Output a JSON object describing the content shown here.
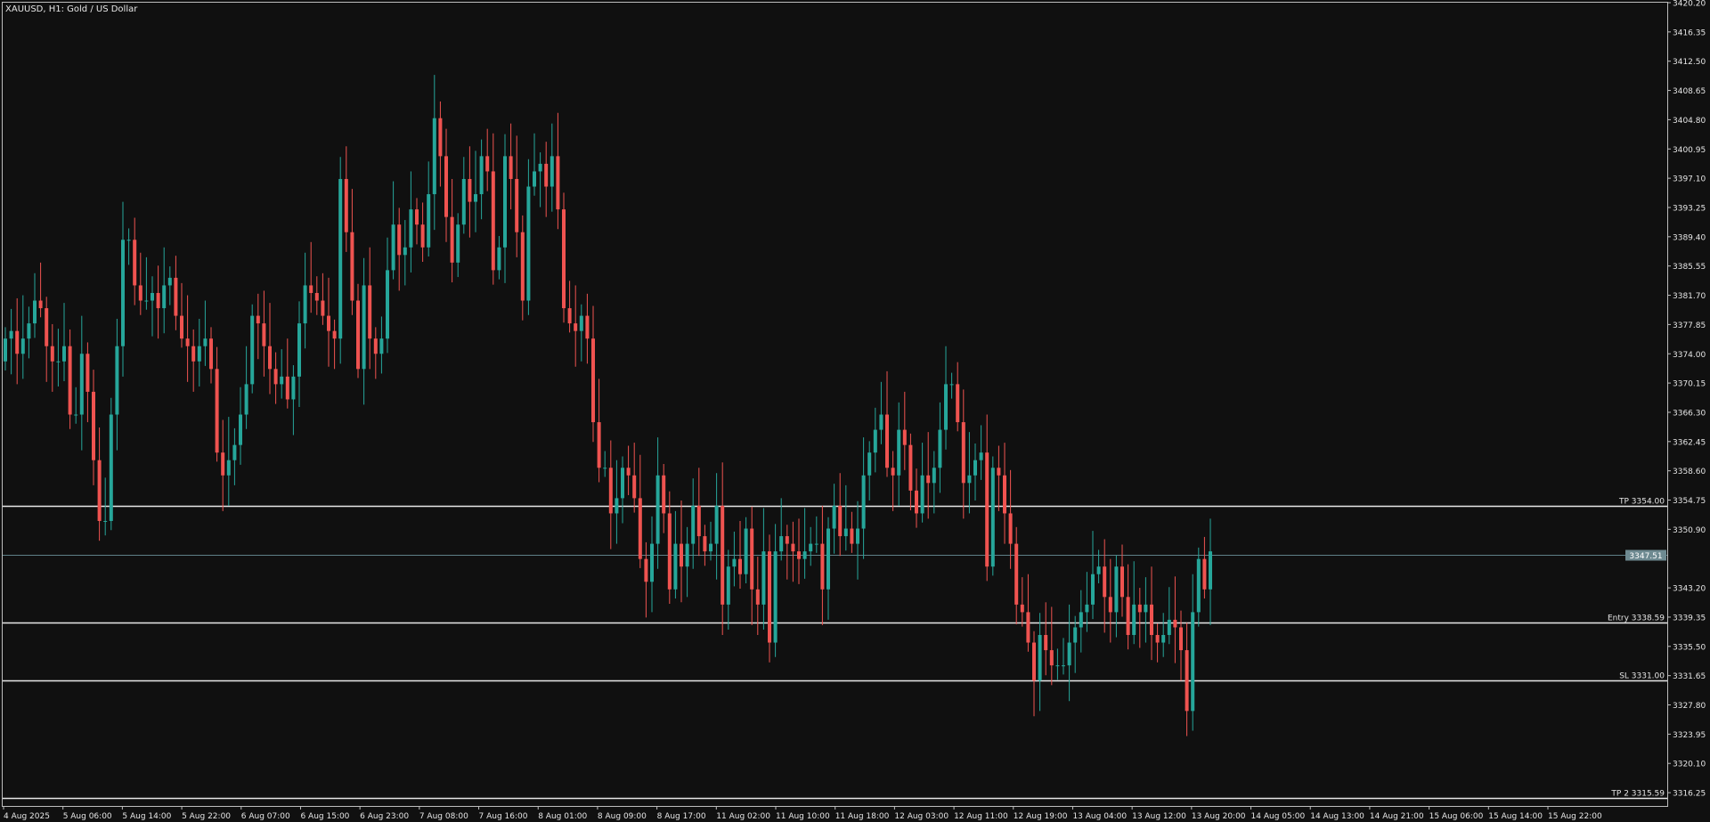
{
  "header": {
    "symbol_line": "XAUUSD, H1:  Gold / US Dollar"
  },
  "colors": {
    "background": "#101010",
    "frame": "#bdbdbd",
    "bull": "#26a69a",
    "bear": "#ef5350",
    "level_line": "#e8e8e8",
    "current_price_line": "#5f7f87",
    "current_price_tag_bg": "#6e8a91",
    "text": "#e6e6e6"
  },
  "chart_data": {
    "type": "candlestick",
    "symbol": "XAUUSD",
    "timeframe": "H1",
    "ylim": [
      3314.5,
      3420.2
    ],
    "grid": false,
    "y_ticks": [
      "3420.20",
      "3416.35",
      "3412.50",
      "3408.65",
      "3404.80",
      "3400.95",
      "3397.10",
      "3393.25",
      "3389.40",
      "3385.55",
      "3381.70",
      "3377.85",
      "3374.00",
      "3370.15",
      "3366.30",
      "3362.45",
      "3358.60",
      "3354.75",
      "3350.90",
      "3343.20",
      "3339.35",
      "3335.50",
      "3331.65",
      "3327.80",
      "3323.95",
      "3320.10",
      "3316.25"
    ],
    "x_ticks": [
      "4 Aug 2025",
      "5 Aug 06:00",
      "5 Aug 14:00",
      "5 Aug 22:00",
      "6 Aug 07:00",
      "6 Aug 15:00",
      "6 Aug 23:00",
      "7 Aug 08:00",
      "7 Aug 16:00",
      "8 Aug 01:00",
      "8 Aug 09:00",
      "8 Aug 17:00",
      "11 Aug 02:00",
      "11 Aug 10:00",
      "11 Aug 18:00",
      "12 Aug 03:00",
      "12 Aug 11:00",
      "12 Aug 19:00",
      "13 Aug 04:00",
      "13 Aug 12:00",
      "13 Aug 20:00",
      "14 Aug 05:00",
      "14 Aug 13:00",
      "14 Aug 21:00",
      "15 Aug 06:00",
      "15 Aug 14:00",
      "15 Aug 22:00"
    ],
    "current_price": {
      "value": 3347.51,
      "label": "3347.51"
    },
    "levels": [
      {
        "name": "TP",
        "value": 3354.0,
        "label": "TP 3354.00"
      },
      {
        "name": "Entry",
        "value": 3338.59,
        "label": "Entry 3338.59"
      },
      {
        "name": "SL",
        "value": 3331.0,
        "label": "SL 3331.00"
      },
      {
        "name": "TP 2",
        "value": 3315.59,
        "label": "TP 2 3315.59"
      }
    ],
    "closes": [
      3376,
      3377,
      3374,
      3376,
      3378,
      3381,
      3380,
      3375,
      3373,
      3373,
      3375,
      3366,
      3366,
      3374,
      3369,
      3360,
      3352,
      3352,
      3366,
      3375,
      3389,
      3389,
      3383,
      3381,
      3381,
      3382,
      3380,
      3383,
      3384,
      3379,
      3376,
      3375,
      3373,
      3375,
      3376,
      3372,
      3361,
      3358,
      3360,
      3362,
      3366,
      3370,
      3379,
      3378,
      3375,
      3372,
      3370,
      3371,
      3368,
      3371,
      3378,
      3383,
      3382,
      3381,
      3379,
      3377,
      3376,
      3397,
      3390,
      3381,
      3372,
      3383,
      3376,
      3374,
      3376,
      3385,
      3391,
      3387,
      3388,
      3393,
      3391,
      3388,
      3395,
      3405,
      3400,
      3392,
      3386,
      3391,
      3397,
      3394,
      3395,
      3400,
      3398,
      3385,
      3388,
      3400,
      3397,
      3390,
      3381,
      3396,
      3398,
      3399,
      3396,
      3400,
      3393,
      3380,
      3378,
      3377,
      3379,
      3376,
      3365,
      3359,
      3359,
      3353,
      3355,
      3359,
      3358,
      3355,
      3347,
      3344,
      3349,
      3358,
      3353,
      3343,
      3349,
      3346,
      3349,
      3354,
      3350,
      3348,
      3349,
      3354,
      3341,
      3346,
      3347,
      3345,
      3351,
      3343,
      3341,
      3348,
      3336,
      3348,
      3350,
      3349,
      3348,
      3347,
      3348,
      3349,
      3349,
      3343,
      3351,
      3354,
      3350,
      3351,
      3349,
      3351,
      3358,
      3361,
      3364,
      3366,
      3359,
      3358,
      3364,
      3362,
      3356,
      3353,
      3358,
      3357,
      3359,
      3364,
      3370,
      3370,
      3365,
      3357,
      3358,
      3360,
      3361,
      3346,
      3359,
      3358,
      3353,
      3349,
      3341,
      3340,
      3336,
      3331,
      3337,
      3335,
      3333,
      3333,
      3333,
      3336,
      3338,
      3340,
      3341,
      3345,
      3346,
      3342,
      3340,
      3346,
      3342,
      3337,
      3341,
      3340,
      3341,
      3337,
      3336,
      3337,
      3339,
      3338,
      3335,
      3327,
      3340,
      3347,
      3343,
      3348
    ]
  },
  "price_tag_label": "3347.51"
}
